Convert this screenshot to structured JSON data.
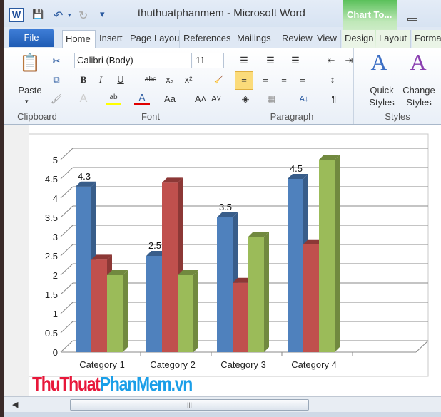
{
  "window": {
    "app_title": "thuthuatphanmem  -  Microsoft Word",
    "contextual_tab": "Chart To...",
    "app_icon": "W"
  },
  "quick_access": {
    "save": "save-icon",
    "undo": "undo-icon",
    "redo": "redo-icon",
    "customize": "▾"
  },
  "tabs": [
    "File",
    "Home",
    "Insert",
    "Page Layout",
    "References",
    "Mailings",
    "Review",
    "View",
    "Design",
    "Layout",
    "Format"
  ],
  "ribbon": {
    "clipboard": {
      "label": "Clipboard",
      "paste": "Paste"
    },
    "font": {
      "label": "Font",
      "font_name": "Calibri (Body)",
      "font_size": "11",
      "bold": "B",
      "italic": "I",
      "underline": "U",
      "strike": "abc",
      "subscript": "x₂",
      "superscript": "x²",
      "grow": "A˄",
      "shrink": "A˅",
      "case": "Aa",
      "highlight_color": "#ffff00",
      "font_color": "#e00000"
    },
    "paragraph": {
      "label": "Paragraph",
      "pilcrow": "¶",
      "sort": "A↓"
    },
    "styles": {
      "label": "Styles",
      "quick_styles": "Quick Styles",
      "change_styles": "Change Styles"
    }
  },
  "watermark": {
    "part1": "ThuThuat",
    "part2": "PhanMem.vn",
    "color1": "#e8173a",
    "color2": "#1a9ee8"
  },
  "chart_data": {
    "type": "bar",
    "subtype": "3d-clustered-column",
    "categories": [
      "Category 1",
      "Category 2",
      "Category 3",
      "Category 4"
    ],
    "series": [
      {
        "values": [
          4.3,
          2.5,
          3.5,
          4.5
        ],
        "color": "#4f81bd",
        "side": "#385d8a"
      },
      {
        "values": [
          2.4,
          4.4,
          1.8,
          2.8
        ],
        "color": "#c0504d",
        "side": "#8c3836"
      },
      {
        "values": [
          2,
          2,
          3,
          5
        ],
        "color": "#9bbb59",
        "side": "#71893f"
      }
    ],
    "data_labels": {
      "series": 0,
      "values": [
        "4.3",
        "2.5",
        "3.5",
        "4.5"
      ]
    },
    "yticks": [
      "0",
      "0.5",
      "1",
      "1.5",
      "2",
      "2.5",
      "3",
      "3.5",
      "4",
      "4.5",
      "5"
    ],
    "ylim": [
      0,
      5
    ],
    "grid": true,
    "legend": "none"
  }
}
